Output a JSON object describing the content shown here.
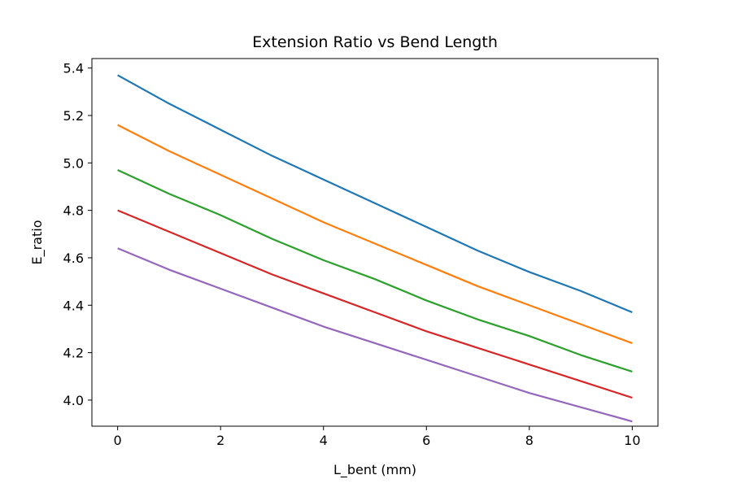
{
  "chart_data": {
    "type": "line",
    "title": "Extension Ratio vs Bend Length",
    "xlabel": "L_bent (mm)",
    "ylabel": "E_ratio",
    "xlim": [
      -0.5,
      10.5
    ],
    "ylim": [
      3.89,
      5.44
    ],
    "xticks": [
      0,
      2,
      4,
      6,
      8,
      10
    ],
    "yticks": [
      4.0,
      4.2,
      4.4,
      4.6,
      4.8,
      5.0,
      5.2,
      5.4
    ],
    "ytick_labels": [
      "4.0",
      "4.2",
      "4.4",
      "4.6",
      "4.8",
      "5.0",
      "5.2",
      "5.4"
    ],
    "grid": false,
    "x": [
      0,
      1,
      2,
      3,
      4,
      5,
      6,
      7,
      8,
      9,
      10
    ],
    "series": [
      {
        "color": "#1f77b4",
        "values": [
          5.37,
          5.25,
          5.14,
          5.03,
          4.93,
          4.83,
          4.73,
          4.63,
          4.54,
          4.46,
          4.37
        ]
      },
      {
        "color": "#ff7f0e",
        "values": [
          5.16,
          5.05,
          4.95,
          4.85,
          4.75,
          4.66,
          4.57,
          4.48,
          4.4,
          4.32,
          4.24
        ]
      },
      {
        "color": "#2ca02c",
        "values": [
          4.97,
          4.87,
          4.78,
          4.68,
          4.59,
          4.51,
          4.42,
          4.34,
          4.27,
          4.19,
          4.12
        ]
      },
      {
        "color": "#d62728",
        "values": [
          4.8,
          4.71,
          4.62,
          4.53,
          4.45,
          4.37,
          4.29,
          4.22,
          4.15,
          4.08,
          4.01
        ]
      },
      {
        "color": "#9467bd",
        "values": [
          4.64,
          4.55,
          4.47,
          4.39,
          4.31,
          4.24,
          4.17,
          4.1,
          4.03,
          3.97,
          3.91
        ]
      }
    ]
  }
}
